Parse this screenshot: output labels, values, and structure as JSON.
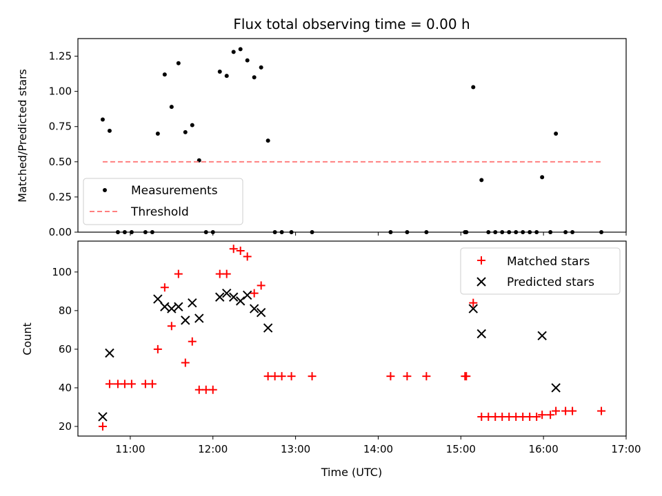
{
  "chart_data": [
    {
      "type": "scatter",
      "title": "Flux total observing time = 0.00 h",
      "ylabel": "Matched/Predicted stars",
      "xlabel": "",
      "xlim": [
        "10:22",
        "17:00"
      ],
      "ylim": [
        0,
        1.375
      ],
      "x_ticks": [
        "11:00",
        "12:00",
        "13:00",
        "14:00",
        "15:00",
        "16:00",
        "17:00"
      ],
      "x_tick_labels_shown": false,
      "y_ticks": [
        "0.00",
        "0.25",
        "0.50",
        "0.75",
        "1.00",
        "1.25"
      ],
      "legend": {
        "placement": "lower-left",
        "entries": [
          "Measurements",
          "Threshold"
        ]
      },
      "grid": false,
      "series": [
        {
          "name": "Measurements",
          "marker": "dot",
          "color": "#000000",
          "points": [
            [
              "10:40",
              0.8
            ],
            [
              "10:45",
              0.72
            ],
            [
              "10:51",
              0.0
            ],
            [
              "10:56",
              0.0
            ],
            [
              "11:01",
              0.0
            ],
            [
              "11:11",
              0.0
            ],
            [
              "11:16",
              0.0
            ],
            [
              "11:20",
              0.7
            ],
            [
              "11:25",
              1.12
            ],
            [
              "11:30",
              0.89
            ],
            [
              "11:35",
              1.2
            ],
            [
              "11:40",
              0.71
            ],
            [
              "11:45",
              0.76
            ],
            [
              "11:50",
              0.51
            ],
            [
              "11:55",
              0.0
            ],
            [
              "12:00",
              0.0
            ],
            [
              "12:05",
              1.14
            ],
            [
              "12:10",
              1.11
            ],
            [
              "12:15",
              1.28
            ],
            [
              "12:20",
              1.3
            ],
            [
              "12:25",
              1.22
            ],
            [
              "12:30",
              1.1
            ],
            [
              "12:35",
              1.17
            ],
            [
              "12:40",
              0.65
            ],
            [
              "12:45",
              0.0
            ],
            [
              "12:50",
              0.0
            ],
            [
              "12:57",
              0.0
            ],
            [
              "13:12",
              0.0
            ],
            [
              "14:09",
              0.0
            ],
            [
              "14:21",
              0.0
            ],
            [
              "14:35",
              0.0
            ],
            [
              "15:03",
              0.0
            ],
            [
              "15:04",
              0.0
            ],
            [
              "15:09",
              1.03
            ],
            [
              "15:15",
              0.37
            ],
            [
              "15:20",
              0.0
            ],
            [
              "15:25",
              0.0
            ],
            [
              "15:30",
              0.0
            ],
            [
              "15:35",
              0.0
            ],
            [
              "15:40",
              0.0
            ],
            [
              "15:45",
              0.0
            ],
            [
              "15:50",
              0.0
            ],
            [
              "15:55",
              0.0
            ],
            [
              "15:59",
              0.39
            ],
            [
              "16:05",
              0.0
            ],
            [
              "16:09",
              0.7
            ],
            [
              "16:16",
              0.0
            ],
            [
              "16:21",
              0.0
            ],
            [
              "16:42",
              0.0
            ]
          ]
        },
        {
          "name": "Threshold",
          "style": "dashed",
          "color": "#ff7f7f",
          "points": [
            [
              "10:40",
              0.5
            ],
            [
              "16:42",
              0.5
            ]
          ]
        }
      ]
    },
    {
      "type": "scatter",
      "title": "",
      "ylabel": "Count",
      "xlabel": "Time (UTC)",
      "xlim": [
        "10:22",
        "17:00"
      ],
      "ylim": [
        15,
        116
      ],
      "x_ticks": [
        "11:00",
        "12:00",
        "13:00",
        "14:00",
        "15:00",
        "16:00",
        "17:00"
      ],
      "x_tick_labels_shown": true,
      "y_ticks": [
        "20",
        "40",
        "60",
        "80",
        "100"
      ],
      "legend": {
        "placement": "upper-right",
        "entries": [
          "Matched stars",
          "Predicted stars"
        ]
      },
      "grid": false,
      "series": [
        {
          "name": "Matched stars",
          "marker": "+",
          "color": "#ff0000",
          "points": [
            [
              "10:40",
              20
            ],
            [
              "10:45",
              42
            ],
            [
              "10:51",
              42
            ],
            [
              "10:56",
              42
            ],
            [
              "11:01",
              42
            ],
            [
              "11:11",
              42
            ],
            [
              "11:16",
              42
            ],
            [
              "11:20",
              60
            ],
            [
              "11:25",
              92
            ],
            [
              "11:30",
              72
            ],
            [
              "11:35",
              99
            ],
            [
              "11:40",
              53
            ],
            [
              "11:45",
              64
            ],
            [
              "11:50",
              39
            ],
            [
              "11:55",
              39
            ],
            [
              "12:00",
              39
            ],
            [
              "12:05",
              99
            ],
            [
              "12:10",
              99
            ],
            [
              "12:15",
              112
            ],
            [
              "12:20",
              111
            ],
            [
              "12:25",
              108
            ],
            [
              "12:30",
              89
            ],
            [
              "12:35",
              93
            ],
            [
              "12:40",
              46
            ],
            [
              "12:45",
              46
            ],
            [
              "12:50",
              46
            ],
            [
              "12:57",
              46
            ],
            [
              "13:12",
              46
            ],
            [
              "14:09",
              46
            ],
            [
              "14:21",
              46
            ],
            [
              "14:35",
              46
            ],
            [
              "15:03",
              46
            ],
            [
              "15:04",
              46
            ],
            [
              "15:09",
              84
            ],
            [
              "15:15",
              25
            ],
            [
              "15:20",
              25
            ],
            [
              "15:25",
              25
            ],
            [
              "15:30",
              25
            ],
            [
              "15:35",
              25
            ],
            [
              "15:40",
              25
            ],
            [
              "15:45",
              25
            ],
            [
              "15:50",
              25
            ],
            [
              "15:55",
              25
            ],
            [
              "15:59",
              26
            ],
            [
              "16:05",
              26
            ],
            [
              "16:09",
              28
            ],
            [
              "16:16",
              28
            ],
            [
              "16:21",
              28
            ],
            [
              "16:42",
              28
            ]
          ]
        },
        {
          "name": "Predicted stars",
          "marker": "x",
          "color": "#000000",
          "points": [
            [
              "10:40",
              25
            ],
            [
              "10:45",
              58
            ],
            [
              "11:20",
              86
            ],
            [
              "11:25",
              82
            ],
            [
              "11:30",
              81
            ],
            [
              "11:35",
              82
            ],
            [
              "11:40",
              75
            ],
            [
              "11:45",
              84
            ],
            [
              "11:50",
              76
            ],
            [
              "12:05",
              87
            ],
            [
              "12:10",
              89
            ],
            [
              "12:15",
              87
            ],
            [
              "12:20",
              85
            ],
            [
              "12:25",
              88
            ],
            [
              "12:30",
              81
            ],
            [
              "12:35",
              79
            ],
            [
              "12:40",
              71
            ],
            [
              "15:09",
              81
            ],
            [
              "15:15",
              68
            ],
            [
              "15:59",
              67
            ],
            [
              "16:09",
              40
            ]
          ]
        }
      ]
    }
  ]
}
